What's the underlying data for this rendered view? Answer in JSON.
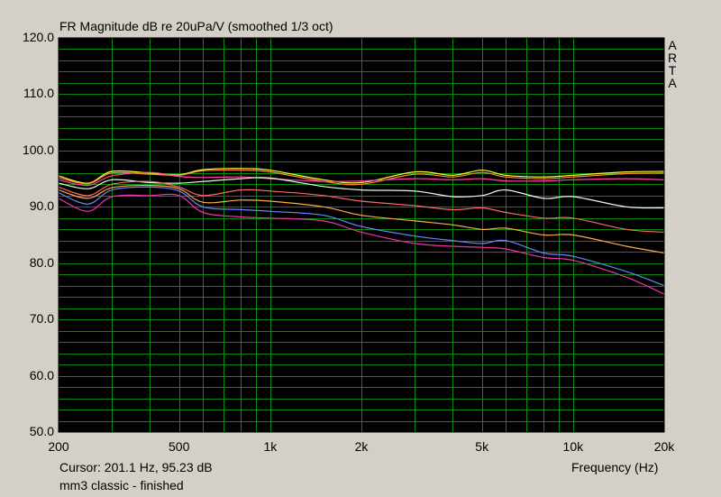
{
  "window": {
    "title": "FR Magnitude dB re 20uPa/V (smoothed 1/3 oct)",
    "cursor_readout": "Cursor: 201.1 Hz, 95.23 dB",
    "status": "mm3 classic - finished",
    "brand_letters": [
      "A",
      "R",
      "T",
      "A"
    ]
  },
  "colors": {
    "background": "#d4d0c8",
    "plot_background": "#000000",
    "grid": "#0a8a0a"
  },
  "chart_data": {
    "type": "line",
    "title": "FR Magnitude dB re 20uPa/V (smoothed 1/3 oct)",
    "xlabel": "Frequency (Hz)",
    "ylabel": "",
    "x_scale": "log",
    "xlim": [
      200,
      20000
    ],
    "ylim": [
      50,
      120
    ],
    "grid": true,
    "y_ticks": [
      "120.0",
      "110.0",
      "100.0",
      "90.0",
      "80.0",
      "70.0",
      "60.0",
      "50.0"
    ],
    "x_ticks": [
      {
        "value": 200,
        "label": "200"
      },
      {
        "value": 500,
        "label": "500"
      },
      {
        "value": 1000,
        "label": "1k"
      },
      {
        "value": 2000,
        "label": "2k"
      },
      {
        "value": 5000,
        "label": "5k"
      },
      {
        "value": 10000,
        "label": "10k"
      },
      {
        "value": 20000,
        "label": "20k"
      }
    ],
    "x": [
      200,
      250,
      300,
      400,
      500,
      600,
      800,
      1000,
      1500,
      2000,
      3000,
      4000,
      5000,
      6000,
      8000,
      10000,
      15000,
      20000
    ],
    "series": [
      {
        "color": "#ffff33",
        "values": [
          95.5,
          94.2,
          96.3,
          96.0,
          95.7,
          96.6,
          96.8,
          96.5,
          94.8,
          94.3,
          96.2,
          95.6,
          96.5,
          95.6,
          95.3,
          95.6,
          96.2,
          96.3
        ]
      },
      {
        "color": "#ff8844",
        "values": [
          95.2,
          94.1,
          96.0,
          95.8,
          95.6,
          96.4,
          96.5,
          96.2,
          94.5,
          94.0,
          95.8,
          95.3,
          96.1,
          95.3,
          95.0,
          95.3,
          95.9,
          96.0
        ]
      },
      {
        "color": "#ff44aa",
        "values": [
          94.8,
          93.8,
          95.5,
          96.1,
          95.4,
          95.2,
          95.3,
          95.0,
          94.5,
          94.6,
          95.0,
          94.8,
          95.0,
          94.6,
          94.6,
          94.8,
          95.0,
          94.8
        ]
      },
      {
        "color": "#e6ffe6",
        "values": [
          94.2,
          93.2,
          94.8,
          94.3,
          94.2,
          94.5,
          95.0,
          95.1,
          93.6,
          93.0,
          92.8,
          91.8,
          92.0,
          93.0,
          91.5,
          91.8,
          90.0,
          89.8
        ]
      },
      {
        "color": "#ff6666",
        "values": [
          93.5,
          92.0,
          94.0,
          94.5,
          93.5,
          92.0,
          93.0,
          92.8,
          92.0,
          91.0,
          90.2,
          89.5,
          89.8,
          89.0,
          88.0,
          88.0,
          86.0,
          85.5
        ]
      },
      {
        "color": "#ffaa44",
        "values": [
          93.0,
          91.5,
          93.4,
          93.8,
          93.2,
          90.8,
          91.2,
          91.0,
          90.0,
          88.5,
          87.5,
          86.8,
          86.0,
          86.2,
          85.0,
          85.0,
          83.0,
          81.8
        ]
      },
      {
        "color": "#6688ff",
        "values": [
          92.5,
          90.5,
          93.0,
          93.5,
          92.8,
          90.0,
          89.5,
          89.2,
          88.5,
          86.5,
          84.8,
          84.0,
          83.5,
          84.0,
          81.8,
          81.2,
          78.5,
          76.0
        ]
      },
      {
        "color": "#ee33aa",
        "values": [
          91.5,
          89.2,
          91.8,
          92.0,
          92.0,
          89.0,
          88.2,
          88.0,
          87.5,
          85.5,
          83.5,
          83.0,
          82.8,
          82.5,
          81.0,
          80.5,
          77.5,
          74.5
        ]
      }
    ]
  }
}
